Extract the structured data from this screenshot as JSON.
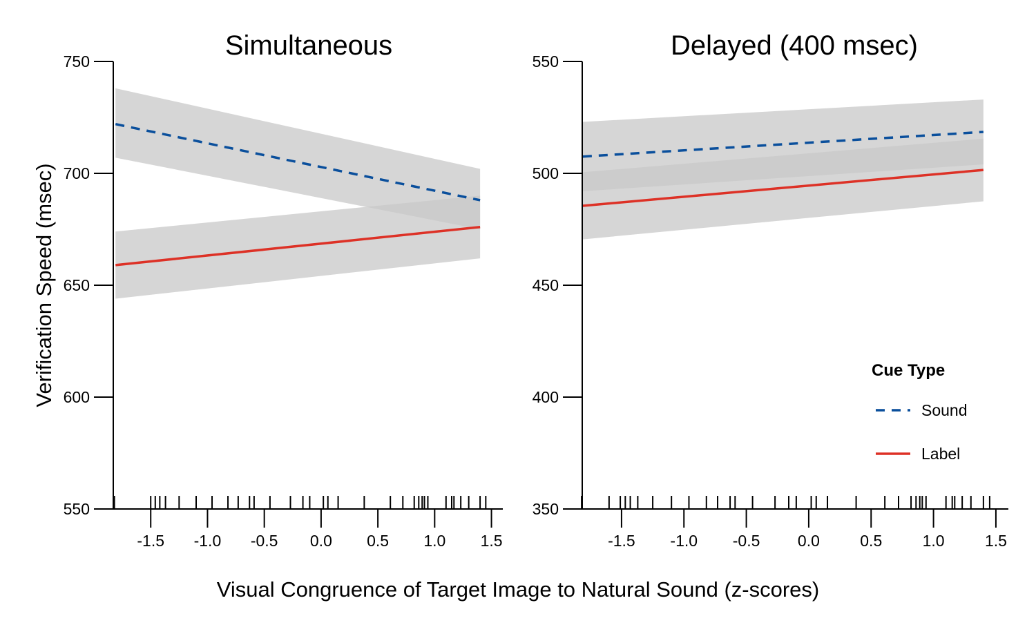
{
  "xlabel": "Visual Congruence of Target Image to Natural Sound (z-scores)",
  "ylabel": "Verification Speed (msec)",
  "legend": {
    "title": "Cue Type",
    "items": [
      {
        "label": "Sound",
        "color": "#0a4f9c",
        "dash": "dashed"
      },
      {
        "label": "Label",
        "color": "#dd3126",
        "dash": "solid"
      }
    ]
  },
  "colors": {
    "band": "#c8c8c8",
    "axis": "#000000"
  },
  "chart_data": [
    {
      "type": "line",
      "title": "Simultaneous",
      "xticks": [
        -1.5,
        -1.0,
        -0.5,
        0.0,
        0.5,
        1.0,
        1.5
      ],
      "xtick_labels": [
        "-1.5",
        "-1.0",
        "-0.5",
        "0.0",
        "0.5",
        "1.0",
        "1.5"
      ],
      "xlim": [
        -2.0,
        1.6
      ],
      "yticks": [
        550,
        600,
        650,
        700,
        750
      ],
      "ytick_labels": [
        "550",
        "600",
        "650",
        "700",
        "750"
      ],
      "ylim": [
        550,
        750
      ],
      "series": [
        {
          "name": "Sound",
          "x": [
            -1.81,
            1.4
          ],
          "y": [
            722,
            688
          ],
          "lower": [
            707,
            675
          ],
          "upper": [
            738,
            702
          ]
        },
        {
          "name": "Label",
          "x": [
            -1.81,
            1.4
          ],
          "y": [
            659,
            676
          ],
          "lower": [
            644,
            662
          ],
          "upper": [
            674,
            690
          ]
        }
      ],
      "rug": [
        -1.82,
        -1.5,
        -1.46,
        -1.42,
        -1.37,
        -1.25,
        -1.1,
        -0.96,
        -0.82,
        -0.73,
        -0.63,
        -0.59,
        -0.45,
        -0.27,
        -0.16,
        -0.1,
        0.02,
        0.06,
        0.15,
        0.38,
        0.61,
        0.72,
        0.82,
        0.86,
        0.89,
        0.91,
        0.94,
        1.1,
        1.15,
        1.17,
        1.23,
        1.3,
        1.4,
        1.45
      ]
    },
    {
      "type": "line",
      "title": "Delayed (400 msec)",
      "xticks": [
        -1.5,
        -1.0,
        -0.5,
        0.0,
        0.5,
        1.0,
        1.5
      ],
      "xtick_labels": [
        "-1.5",
        "-1.0",
        "-0.5",
        "0.0",
        "0.5",
        "1.0",
        "1.5"
      ],
      "xlim": [
        -1.97,
        1.6
      ],
      "yticks": [
        350,
        400,
        450,
        500,
        550
      ],
      "ytick_labels": [
        "350",
        "400",
        "450",
        "500",
        "550"
      ],
      "ylim": [
        350,
        550
      ],
      "series": [
        {
          "name": "Sound",
          "x": [
            -1.81,
            1.4
          ],
          "y": [
            507.5,
            518.5
          ],
          "lower": [
            492,
            504
          ],
          "upper": [
            523,
            533
          ]
        },
        {
          "name": "Label",
          "x": [
            -1.81,
            1.4
          ],
          "y": [
            485.5,
            501.5
          ],
          "lower": [
            470.5,
            487.5
          ],
          "upper": [
            500.5,
            515.5
          ]
        }
      ],
      "rug": [
        -1.82,
        -1.6,
        -1.51,
        -1.47,
        -1.43,
        -1.37,
        -1.25,
        -1.1,
        -0.96,
        -0.82,
        -0.73,
        -0.63,
        -0.59,
        -0.45,
        -0.27,
        -0.16,
        -0.1,
        0.02,
        0.06,
        0.15,
        0.38,
        0.61,
        0.72,
        0.82,
        0.86,
        0.89,
        0.91,
        0.94,
        1.1,
        1.15,
        1.17,
        1.23,
        1.3,
        1.4,
        1.45
      ]
    }
  ]
}
